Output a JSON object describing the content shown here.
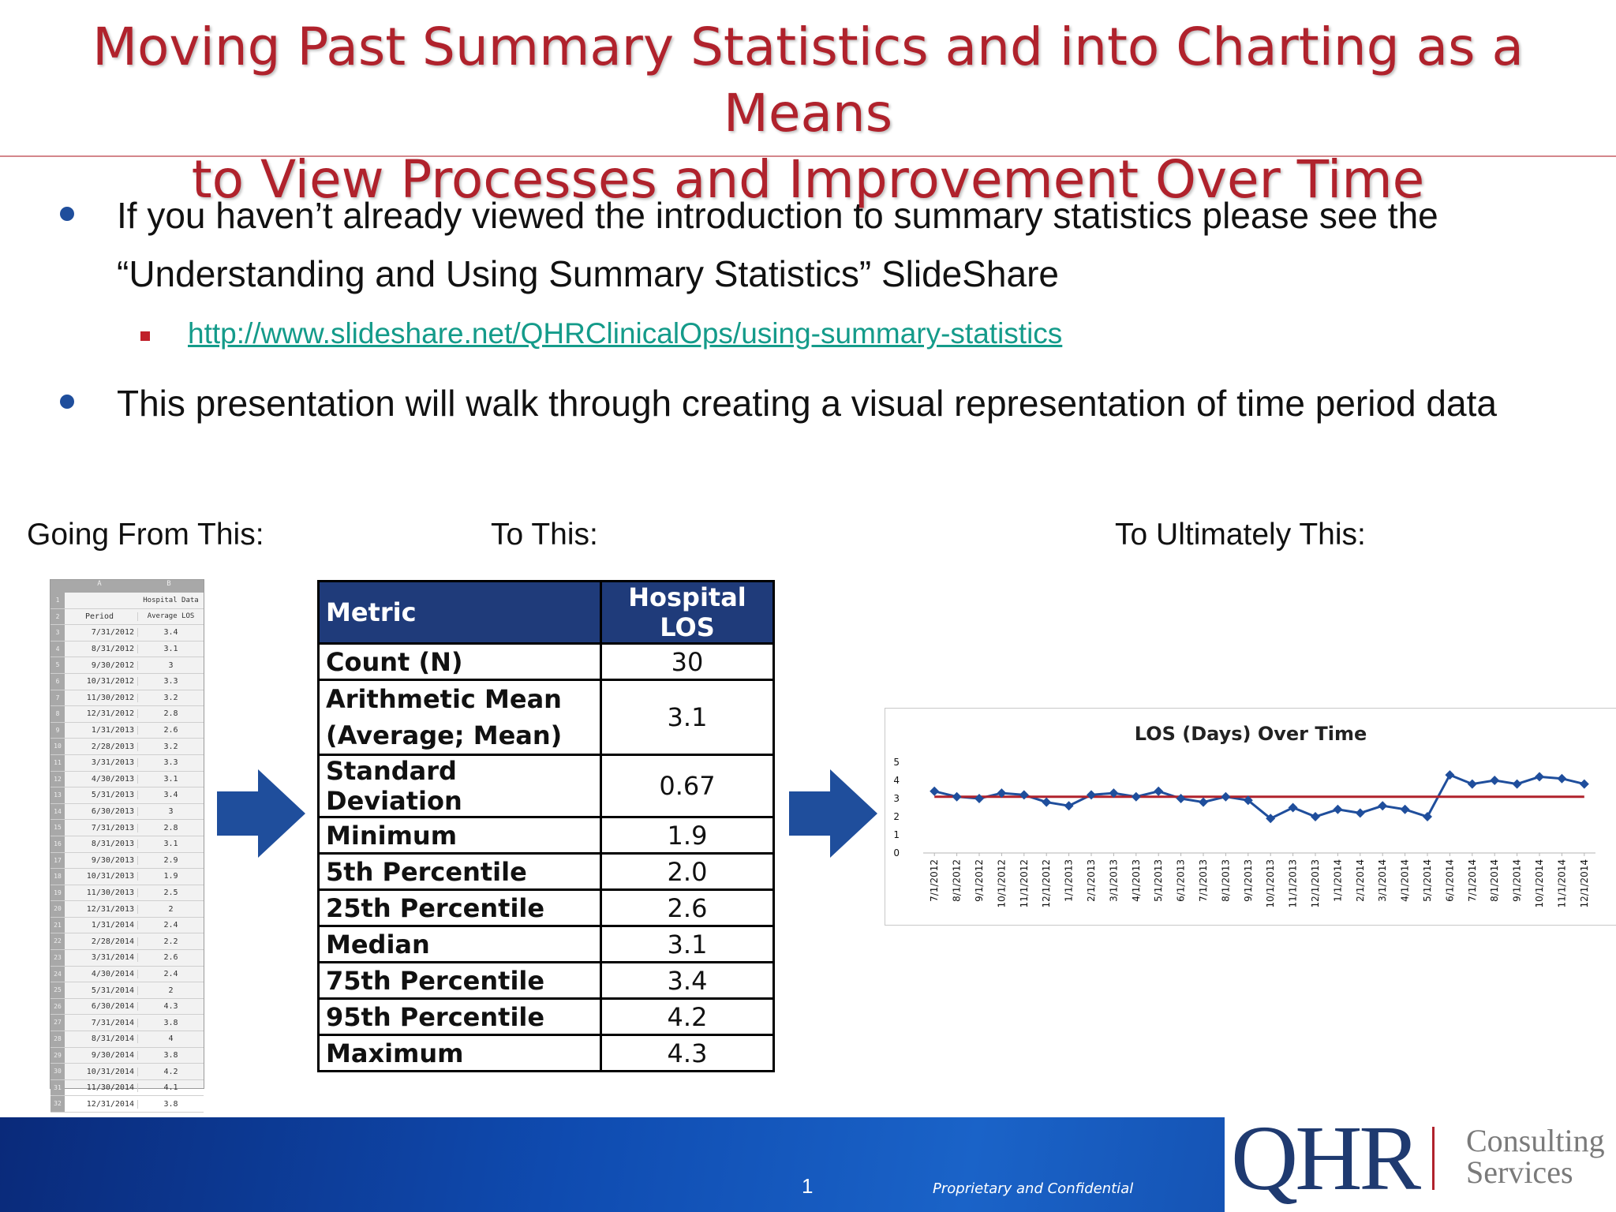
{
  "slide": {
    "title_line1": "Moving Past Summary Statistics and into Charting as a Means",
    "title_line2": "to View Processes and Improvement Over Time",
    "bullet1": "If you haven’t already viewed the introduction to summary statistics please see the “Understanding and Using Summary Statistics” SlideShare",
    "link": "http://www.slideshare.net/QHRClinicalOps/using-summary-statistics",
    "bullet2": "This presentation will walk through creating a visual representation of time period data",
    "caption_from": "Going From This:",
    "caption_to": "To This:",
    "caption_ultimately": "To Ultimately This:",
    "page_number": "1",
    "confidential": "Proprietary and Confidential"
  },
  "sheet": {
    "col_a": "A",
    "col_b": "B",
    "header1": "Hospital Data",
    "header_period": "Period",
    "header_value": "Average LOS",
    "rows": [
      [
        "7/31/2012",
        "3.4"
      ],
      [
        "8/31/2012",
        "3.1"
      ],
      [
        "9/30/2012",
        "3"
      ],
      [
        "10/31/2012",
        "3.3"
      ],
      [
        "11/30/2012",
        "3.2"
      ],
      [
        "12/31/2012",
        "2.8"
      ],
      [
        "1/31/2013",
        "2.6"
      ],
      [
        "2/28/2013",
        "3.2"
      ],
      [
        "3/31/2013",
        "3.3"
      ],
      [
        "4/30/2013",
        "3.1"
      ],
      [
        "5/31/2013",
        "3.4"
      ],
      [
        "6/30/2013",
        "3"
      ],
      [
        "7/31/2013",
        "2.8"
      ],
      [
        "8/31/2013",
        "3.1"
      ],
      [
        "9/30/2013",
        "2.9"
      ],
      [
        "10/31/2013",
        "1.9"
      ],
      [
        "11/30/2013",
        "2.5"
      ],
      [
        "12/31/2013",
        "2"
      ],
      [
        "1/31/2014",
        "2.4"
      ],
      [
        "2/28/2014",
        "2.2"
      ],
      [
        "3/31/2014",
        "2.6"
      ],
      [
        "4/30/2014",
        "2.4"
      ],
      [
        "5/31/2014",
        "2"
      ],
      [
        "6/30/2014",
        "4.3"
      ],
      [
        "7/31/2014",
        "3.8"
      ],
      [
        "8/31/2014",
        "4"
      ],
      [
        "9/30/2014",
        "3.8"
      ],
      [
        "10/31/2014",
        "4.2"
      ],
      [
        "11/30/2014",
        "4.1"
      ],
      [
        "12/31/2014",
        "3.8"
      ]
    ]
  },
  "metrics": {
    "header_metric": "Metric",
    "header_value": "Hospital LOS",
    "rows": [
      {
        "label": "Count (N)",
        "value": "30"
      },
      {
        "label": "Arithmetic Mean (Average; Mean)",
        "value": "3.1"
      },
      {
        "label": "Standard Deviation",
        "value": "0.67"
      },
      {
        "label": "Minimum",
        "value": "1.9"
      },
      {
        "label": "5th Percentile",
        "value": "2.0"
      },
      {
        "label": "25th Percentile",
        "value": "2.6"
      },
      {
        "label": "Median",
        "value": "3.1"
      },
      {
        "label": "75th Percentile",
        "value": "3.4"
      },
      {
        "label": "95th Percentile",
        "value": "4.2"
      },
      {
        "label": "Maximum",
        "value": "4.3"
      }
    ]
  },
  "logo": {
    "brand": "QHR",
    "line1": "Consulting",
    "line2": "Services"
  },
  "colors": {
    "title": "#b0222c",
    "bullet": "#1f4e9c",
    "arrow": "#1f4e9c",
    "table_header": "#1f3b7a",
    "series": "#1f4e9c",
    "mean_line": "#b0222c"
  },
  "chart_data": {
    "type": "line",
    "title": "LOS (Days) Over Time",
    "categories": [
      "7/1/2012",
      "8/1/2012",
      "9/1/2012",
      "10/1/2012",
      "11/1/2012",
      "12/1/2012",
      "1/1/2013",
      "2/1/2013",
      "3/1/2013",
      "4/1/2013",
      "5/1/2013",
      "6/1/2013",
      "7/1/2013",
      "8/1/2013",
      "9/1/2013",
      "10/1/2013",
      "11/1/2013",
      "12/1/2013",
      "1/1/2014",
      "2/1/2014",
      "3/1/2014",
      "4/1/2014",
      "5/1/2014",
      "6/1/2014",
      "7/1/2014",
      "8/1/2014",
      "9/1/2014",
      "10/1/2014",
      "11/1/2014",
      "12/1/2014"
    ],
    "series": [
      {
        "values": [
          3.4,
          3.1,
          3,
          3.3,
          3.2,
          2.8,
          2.6,
          3.2,
          3.3,
          3.1,
          3.4,
          3,
          2.8,
          3.1,
          2.9,
          1.9,
          2.5,
          2,
          2.4,
          2.2,
          2.6,
          2.4,
          2,
          4.3,
          3.8,
          4,
          3.8,
          4.2,
          4.1,
          3.8
        ]
      },
      {
        "values": [
          3.1,
          3.1,
          3.1,
          3.1,
          3.1,
          3.1,
          3.1,
          3.1,
          3.1,
          3.1,
          3.1,
          3.1,
          3.1,
          3.1,
          3.1,
          3.1,
          3.1,
          3.1,
          3.1,
          3.1,
          3.1,
          3.1,
          3.1,
          3.1,
          3.1,
          3.1,
          3.1,
          3.1,
          3.1,
          3.1
        ]
      }
    ],
    "yticks": [
      0,
      1,
      2,
      3,
      4,
      5
    ],
    "ylim": [
      0,
      5
    ],
    "grid": false,
    "legend": "none"
  }
}
